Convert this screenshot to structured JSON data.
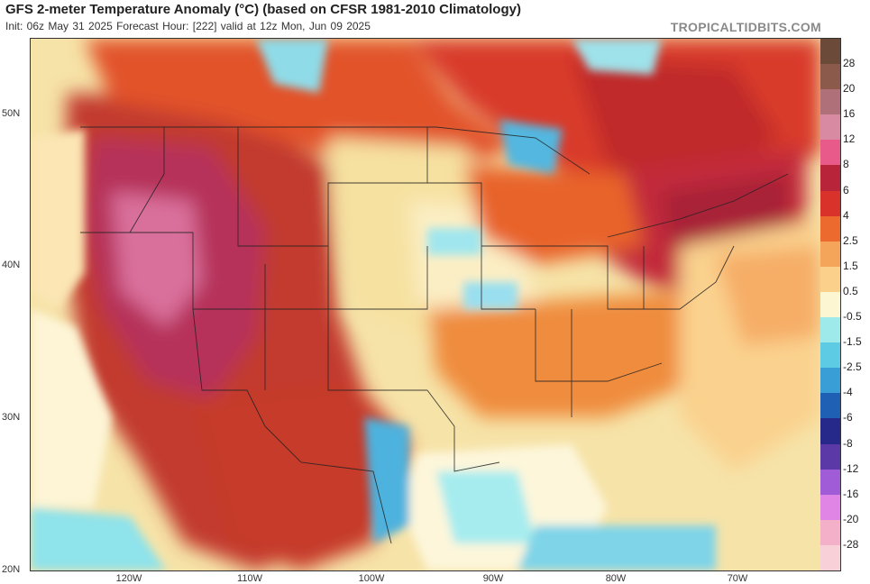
{
  "header": {
    "title": "GFS 2-meter Temperature Anomaly (°C) (based on CFSR 1981-2010 Climatology)",
    "subtitle": "Init: 06z May 31 2025   Forecast Hour: [222]   valid at 12z Mon, Jun 09 2025",
    "brand": "TROPICALTIDBITS.COM"
  },
  "axes": {
    "lat_labels": [
      "50N",
      "40N",
      "30N",
      "20N"
    ],
    "lon_labels": [
      "120W",
      "110W",
      "100W",
      "90W",
      "80W",
      "70W"
    ]
  },
  "colorbar": {
    "labels": [
      "28",
      "20",
      "16",
      "12",
      "8",
      "6",
      "4",
      "2.5",
      "1.5",
      "0.5",
      "-0.5",
      "-1.5",
      "-2.5",
      "-4",
      "-6",
      "-8",
      "-12",
      "-16",
      "-20",
      "-28"
    ],
    "colors": [
      "#6b4a3a",
      "#8c5a4a",
      "#b0707a",
      "#d98aa3",
      "#e85a8a",
      "#b8243a",
      "#d8322a",
      "#ec6a2e",
      "#f5a55a",
      "#fbd08a",
      "#fdf6d3",
      "#9eeaea",
      "#5ccbe3",
      "#3a9ed6",
      "#1f60b5",
      "#26288a",
      "#5b3aa8",
      "#9f5cd6",
      "#e084e6",
      "#f4b0c8",
      "#f8d0d8"
    ]
  }
}
